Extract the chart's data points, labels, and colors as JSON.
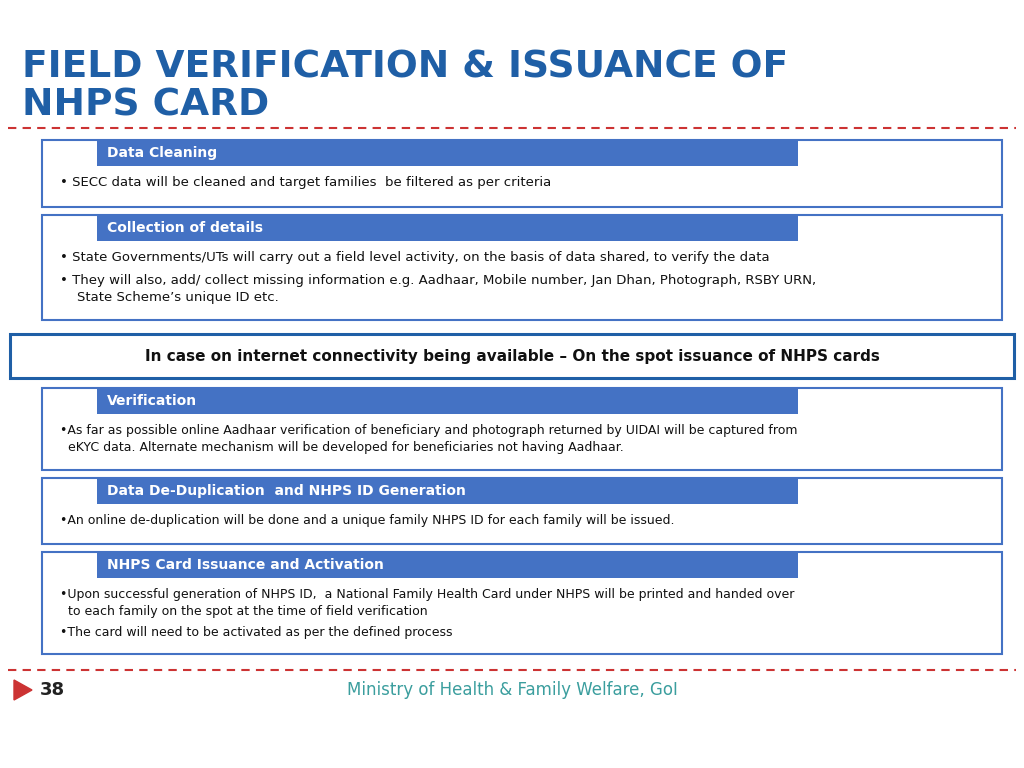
{
  "title_line1": "FIELD VERIFICATION & ISSUANCE OF",
  "title_line2": "NHPS CARD",
  "title_color": "#1F5FA6",
  "bg_color": "#FFFFFF",
  "sep_color": "#CC3333",
  "footer_text": "Ministry of Health & Family Welfare, GoI",
  "footer_number": "38",
  "footer_color": "#3B9E9E",
  "header_bg": "#4472C4",
  "header_text_color": "#FFFFFF",
  "box_border_color": "#4472C4",
  "highlight_border": "#1F5FA6",
  "highlight_text": "In case on internet connectivity being available – On the spot issuance of NHPS cards",
  "sections_top": [
    {
      "header": "Data Cleaning",
      "bullets": [
        "• SECC data will be cleaned and target families  be filtered as per criteria"
      ]
    },
    {
      "header": "Collection of details",
      "bullets": [
        "• State Governments/UTs will carry out a field level activity, on the basis of data shared, to verify the data",
        "• They will also, add/ collect missing information e.g. Aadhaar, Mobile number, Jan Dhan, Photograph, RSBY URN,\n    State Scheme’s unique ID etc."
      ]
    }
  ],
  "sections_bottom": [
    {
      "header": "Verification",
      "bullets": [
        "•As far as possible online Aadhaar verification of beneficiary and photograph returned by UIDAI will be captured from\n  eKYC data. Alternate mechanism will be developed for beneficiaries not having Aadhaar."
      ]
    },
    {
      "header": "Data De-Duplication  and NHPS ID Generation",
      "bullets": [
        "•An online de-duplication will be done and a unique family NHPS ID for each family will be issued."
      ]
    },
    {
      "header": "NHPS Card Issuance and Activation",
      "bullets": [
        "•Upon successful generation of NHPS ID,  a National Family Health Card under NHPS will be printed and handed over\n  to each family on the spot at the time of field verification",
        "•The card will need to be activated as per the defined process"
      ]
    }
  ]
}
